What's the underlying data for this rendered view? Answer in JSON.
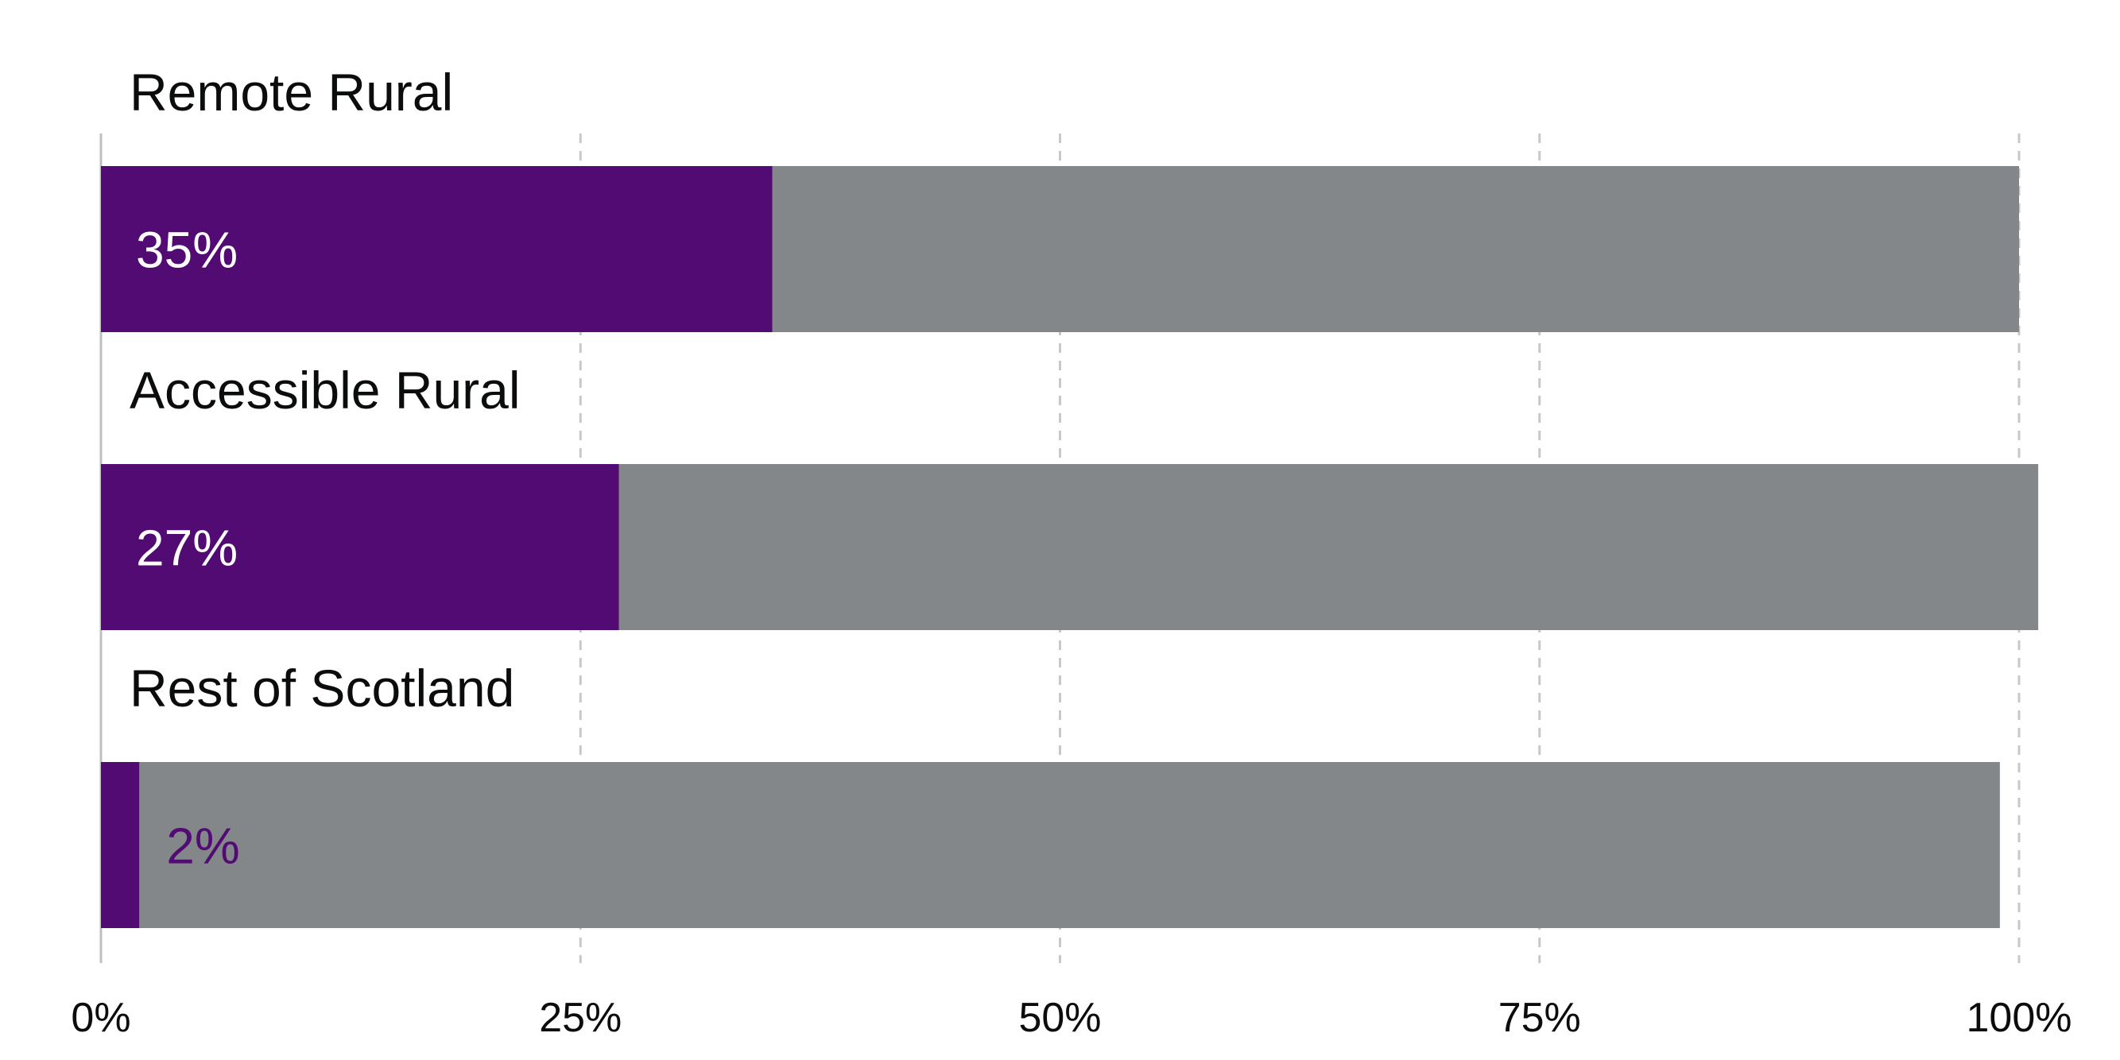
{
  "chart_data": {
    "type": "bar",
    "orientation": "horizontal",
    "stacked": true,
    "categories": [
      "Remote Rural",
      "Accessible Rural",
      "Rest of Scotland"
    ],
    "series": [
      {
        "values": [
          35,
          27,
          2
        ],
        "labels": [
          "35%",
          "27%",
          "2%"
        ]
      }
    ],
    "remainder_totals": [
      100,
      101,
      99
    ],
    "xlim": [
      0,
      100
    ],
    "x_ticks": [
      0,
      25,
      50,
      75,
      100
    ],
    "x_tick_labels": [
      "0%",
      "25%",
      "50%",
      "75%",
      "100%"
    ],
    "grid": "vertical dashed",
    "legend": "none",
    "title": "",
    "xlabel": "",
    "ylabel": ""
  },
  "colors": {
    "highlight": "#520B73",
    "remainder": "#84878A",
    "grid": "#C8C8C8",
    "axis": "#BFBFBF",
    "label_text": "#0B0C0C",
    "value_on_bar": "#FFFFFF",
    "value_off_bar": "#520B73"
  }
}
